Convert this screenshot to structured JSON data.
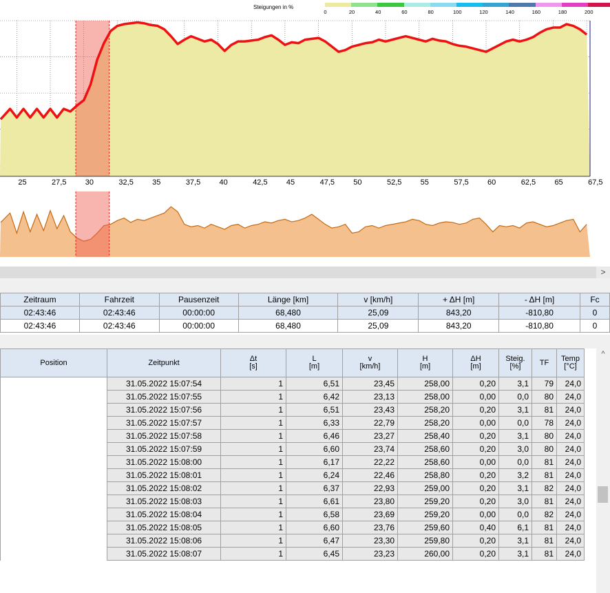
{
  "legend": {
    "title": "Steigungen in %",
    "ticks": [
      "0",
      "20",
      "40",
      "60",
      "80",
      "100",
      "120",
      "140",
      "160",
      "180",
      "200"
    ],
    "colors": [
      "#ecea9e",
      "#8fe08f",
      "#39c93e",
      "#a9ece6",
      "#89dcef",
      "#18bdf0",
      "#34a4d2",
      "#4f79ad",
      "#ef96ee",
      "#e23fc2",
      "#d4154b"
    ]
  },
  "x_axis": {
    "ticks": [
      "25",
      "27,5",
      "30",
      "32,5",
      "35",
      "37,5",
      "40",
      "42,5",
      "45",
      "47,5",
      "50",
      "52,5",
      "55",
      "57,5",
      "60",
      "62,5",
      "65",
      "67,5"
    ]
  },
  "chart_data": [
    {
      "type": "area",
      "x_unit": "km",
      "xlim": [
        23.75,
        67.75
      ],
      "x": [
        23.8,
        24.5,
        25,
        25.5,
        26,
        26.5,
        27,
        27.5,
        28,
        28.5,
        29,
        29.5,
        30,
        30.5,
        31,
        31.5,
        32,
        32.5,
        33,
        33.5,
        34,
        34.5,
        35,
        35.5,
        36,
        36.5,
        37,
        37.5,
        38,
        38.5,
        39,
        39.5,
        40,
        40.5,
        41,
        41.5,
        42,
        42.5,
        43,
        43.5,
        44,
        44.5,
        45,
        45.5,
        46,
        46.5,
        47,
        47.5,
        48,
        48.5,
        49,
        49.5,
        50,
        50.5,
        51,
        51.5,
        52,
        52.5,
        53,
        53.5,
        54,
        54.5,
        55,
        55.5,
        56,
        56.5,
        57,
        57.5,
        58,
        58.5,
        59,
        59.5,
        60,
        60.5,
        61,
        61.5,
        62,
        62.5,
        63,
        63.5,
        64,
        64.5,
        65,
        65.5,
        66,
        66.5,
        67,
        67.5
      ],
      "y": [
        0.66,
        0.78,
        0.68,
        0.78,
        0.68,
        0.78,
        0.68,
        0.78,
        0.68,
        0.78,
        0.75,
        0.82,
        0.88,
        1.06,
        1.35,
        1.54,
        1.68,
        1.74,
        1.76,
        1.77,
        1.78,
        1.77,
        1.75,
        1.74,
        1.7,
        1.62,
        1.53,
        1.58,
        1.62,
        1.59,
        1.56,
        1.58,
        1.53,
        1.45,
        1.52,
        1.56,
        1.56,
        1.57,
        1.58,
        1.61,
        1.63,
        1.58,
        1.52,
        1.55,
        1.54,
        1.58,
        1.59,
        1.6,
        1.56,
        1.5,
        1.44,
        1.46,
        1.5,
        1.52,
        1.54,
        1.55,
        1.58,
        1.56,
        1.58,
        1.6,
        1.62,
        1.6,
        1.58,
        1.56,
        1.59,
        1.57,
        1.56,
        1.53,
        1.51,
        1.5,
        1.48,
        1.46,
        1.44,
        1.48,
        1.52,
        1.56,
        1.58,
        1.56,
        1.58,
        1.61,
        1.66,
        1.7,
        1.72,
        1.72,
        1.76,
        1.74,
        1.7,
        1.64
      ],
      "highlight_range": [
        29.4,
        31.9
      ],
      "grid": true
    },
    {
      "type": "area",
      "x_unit": "km",
      "xlim": [
        23.75,
        67.75
      ],
      "x": [
        23.8,
        24.5,
        25,
        25.5,
        26,
        26.5,
        27,
        27.5,
        28,
        28.5,
        29,
        29.5,
        30,
        30.5,
        31,
        31.5,
        32,
        32.5,
        33,
        33.5,
        34,
        34.5,
        35,
        35.5,
        36,
        36.5,
        37,
        37.5,
        38,
        38.5,
        39,
        39.5,
        40,
        40.5,
        41,
        41.5,
        42,
        42.5,
        43,
        43.5,
        44,
        44.5,
        45,
        45.5,
        46,
        46.5,
        47,
        47.5,
        48,
        48.5,
        49,
        49.5,
        50,
        50.5,
        51,
        51.5,
        52,
        52.5,
        53,
        53.5,
        54,
        54.5,
        55,
        55.5,
        56,
        56.5,
        57,
        57.5,
        58,
        58.5,
        59,
        59.5,
        60,
        60.5,
        61,
        61.5,
        62,
        62.5,
        63,
        63.5,
        64,
        64.5,
        65,
        65.5,
        66,
        66.5,
        67,
        67.5
      ],
      "y": [
        0.55,
        0.7,
        0.38,
        0.72,
        0.4,
        0.68,
        0.42,
        0.74,
        0.45,
        0.66,
        0.4,
        0.3,
        0.25,
        0.28,
        0.38,
        0.5,
        0.52,
        0.58,
        0.62,
        0.55,
        0.6,
        0.58,
        0.62,
        0.66,
        0.7,
        0.8,
        0.72,
        0.52,
        0.48,
        0.5,
        0.46,
        0.52,
        0.48,
        0.44,
        0.5,
        0.52,
        0.46,
        0.5,
        0.52,
        0.56,
        0.54,
        0.58,
        0.6,
        0.56,
        0.58,
        0.62,
        0.68,
        0.6,
        0.52,
        0.46,
        0.48,
        0.52,
        0.38,
        0.4,
        0.48,
        0.5,
        0.46,
        0.5,
        0.52,
        0.54,
        0.56,
        0.6,
        0.58,
        0.52,
        0.5,
        0.54,
        0.56,
        0.55,
        0.52,
        0.54,
        0.6,
        0.62,
        0.52,
        0.4,
        0.5,
        0.48,
        0.5,
        0.46,
        0.54,
        0.56,
        0.52,
        0.48,
        0.5,
        0.54,
        0.58,
        0.6,
        0.4,
        0.52
      ],
      "highlight_range": [
        29.4,
        31.9
      ],
      "grid": false
    }
  ],
  "summary": {
    "headers": [
      "Zeitraum",
      "Fahrzeit",
      "Pausenzeit",
      "Länge  [km]",
      "v  [km/h]",
      "+ ΔH  [m]",
      "- ΔH  [m]",
      "Fc"
    ],
    "rows": [
      [
        "02:43:46",
        "02:43:46",
        "00:00:00",
        "68,480",
        "25,09",
        "843,20",
        "-810,80",
        "0"
      ],
      [
        "02:43:46",
        "02:43:46",
        "00:00:00",
        "68,480",
        "25,09",
        "843,20",
        "-810,80",
        "0"
      ]
    ]
  },
  "detail": {
    "headers": [
      "Position",
      "Zeitpunkt",
      "Δt\n[s]",
      "L\n[m]",
      "v\n[km/h]",
      "H\n[m]",
      "ΔH\n[m]",
      "Steig.\n[%]",
      "TF",
      "Temp\n[°C]"
    ],
    "rows": [
      [
        "",
        "31.05.2022 15:07:54",
        "1",
        "6,51",
        "23,45",
        "258,00",
        "0,20",
        "3,1",
        "79",
        "24,0"
      ],
      [
        "",
        "31.05.2022 15:07:55",
        "1",
        "6,42",
        "23,13",
        "258,00",
        "0,00",
        "0,0",
        "80",
        "24,0"
      ],
      [
        "",
        "31.05.2022 15:07:56",
        "1",
        "6,51",
        "23,43",
        "258,20",
        "0,20",
        "3,1",
        "81",
        "24,0"
      ],
      [
        "",
        "31.05.2022 15:07:57",
        "1",
        "6,33",
        "22,79",
        "258,20",
        "0,00",
        "0,0",
        "78",
        "24,0"
      ],
      [
        "",
        "31.05.2022 15:07:58",
        "1",
        "6,46",
        "23,27",
        "258,40",
        "0,20",
        "3,1",
        "80",
        "24,0"
      ],
      [
        "",
        "31.05.2022 15:07:59",
        "1",
        "6,60",
        "23,74",
        "258,60",
        "0,20",
        "3,0",
        "80",
        "24,0"
      ],
      [
        "",
        "31.05.2022 15:08:00",
        "1",
        "6,17",
        "22,22",
        "258,60",
        "0,00",
        "0,0",
        "81",
        "24,0"
      ],
      [
        "",
        "31.05.2022 15:08:01",
        "1",
        "6,24",
        "22,46",
        "258,80",
        "0,20",
        "3,2",
        "81",
        "24,0"
      ],
      [
        "",
        "31.05.2022 15:08:02",
        "1",
        "6,37",
        "22,93",
        "259,00",
        "0,20",
        "3,1",
        "82",
        "24,0"
      ],
      [
        "",
        "31.05.2022 15:08:03",
        "1",
        "6,61",
        "23,80",
        "259,20",
        "0,20",
        "3,0",
        "81",
        "24,0"
      ],
      [
        "",
        "31.05.2022 15:08:04",
        "1",
        "6,58",
        "23,69",
        "259,20",
        "0,00",
        "0,0",
        "82",
        "24,0"
      ],
      [
        "",
        "31.05.2022 15:08:05",
        "1",
        "6,60",
        "23,76",
        "259,60",
        "0,40",
        "6,1",
        "81",
        "24,0"
      ],
      [
        "",
        "31.05.2022 15:08:06",
        "1",
        "6,47",
        "23,30",
        "259,80",
        "0,20",
        "3,1",
        "81",
        "24,0"
      ],
      [
        "",
        "31.05.2022 15:08:07",
        "1",
        "6,45",
        "23,23",
        "260,00",
        "0,20",
        "3,1",
        "81",
        "24,0"
      ]
    ]
  },
  "ui": {
    "hscroll_arrow": ">",
    "vscroll_arrow": "^"
  }
}
